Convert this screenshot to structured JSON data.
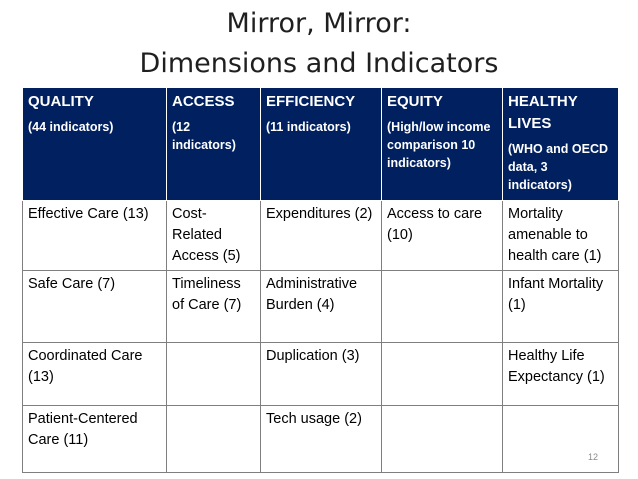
{
  "title": {
    "line1": "Mirror, Mirror:",
    "line2": "Dimensions and Indicators"
  },
  "table": {
    "columns": [
      {
        "name": "QUALITY",
        "sub": "(44 indicators)"
      },
      {
        "name": "ACCESS",
        "sub": "(12 indicators)"
      },
      {
        "name": "EFFICIENCY",
        "sub": "(11 indicators)"
      },
      {
        "name": "EQUITY",
        "sub": "(High/low income comparison 10 indicators)"
      },
      {
        "name": "HEALTHY LIVES",
        "sub": "(WHO and OECD data, 3 indicators)"
      }
    ],
    "rows": [
      [
        "Effective Care (13)",
        "Cost-Related Access (5)",
        "Expenditures (2)",
        "Access to care (10)",
        "Mortality amenable to health care (1)"
      ],
      [
        "Safe Care (7)",
        "Timeliness of Care (7)",
        "Administrative Burden (4)",
        "",
        "Infant Mortality (1)"
      ],
      [
        "Coordinated Care (13)",
        "",
        "Duplication (3)",
        "",
        "Healthy Life Expectancy (1)"
      ],
      [
        "Patient-Centered Care (11)",
        "",
        "Tech usage (2)",
        "",
        ""
      ]
    ]
  },
  "page_number": "12"
}
